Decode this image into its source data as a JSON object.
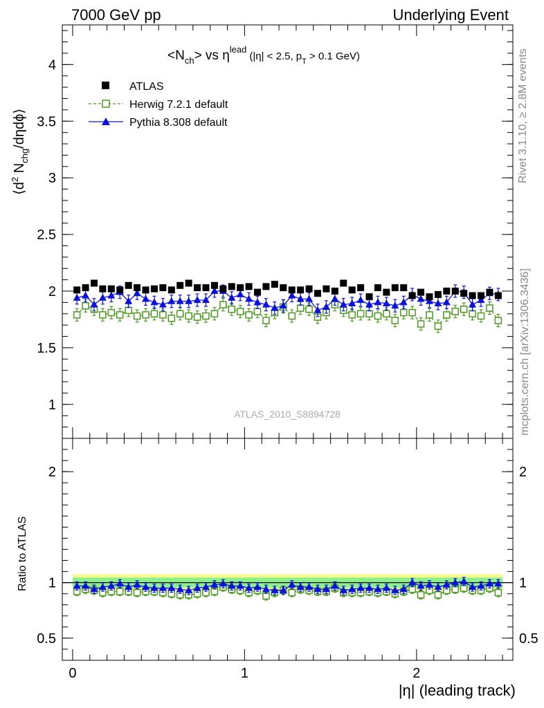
{
  "header": {
    "left": "7000 GeV pp",
    "right": "Underlying Event"
  },
  "side": {
    "rivet": "Rivet 3.1.10, ≥ 2.8M events",
    "mcplots": "mcplots.cern.ch [arXiv:1306.3436]"
  },
  "watermark": "ATLAS_2010_S8894728",
  "colors": {
    "atlas": "#000000",
    "herwig": "#4c9a1f",
    "pythia": "#0a10e0",
    "band_inner": "#8cf08c",
    "band_outer": "#fafa8c"
  },
  "chart_data": [
    {
      "type": "scatter",
      "title_parts": {
        "main": "<N",
        "sub1": "ch",
        "mid": "> vs η",
        "sup": "lead",
        "cond": "(|η| < 2.5, p",
        "sub2": "T",
        "cond_end": " > 0.1 GeV)"
      },
      "ylabel_parts": {
        "pre": "⟨d",
        "sup": "2",
        "mid": " N",
        "sub": "chg",
        "post": "/dηdϕ⟩"
      },
      "xlabel": "|η| (leading track)",
      "ylim": [
        0.7,
        4.35
      ],
      "xlim": [
        -0.06,
        2.56
      ],
      "y_ticks": [
        "1",
        "1.5",
        "2",
        "2.5",
        "3",
        "3.5",
        "4"
      ],
      "legend_position": "top-left",
      "legend": [
        "ATLAS",
        "Herwig 7.2.1 default",
        "Pythia 8.308 default"
      ],
      "x": [
        0.025,
        0.075,
        0.125,
        0.175,
        0.225,
        0.275,
        0.325,
        0.375,
        0.425,
        0.475,
        0.525,
        0.575,
        0.625,
        0.675,
        0.725,
        0.775,
        0.825,
        0.875,
        0.925,
        0.975,
        1.025,
        1.075,
        1.125,
        1.175,
        1.225,
        1.275,
        1.325,
        1.375,
        1.425,
        1.475,
        1.525,
        1.575,
        1.625,
        1.675,
        1.725,
        1.775,
        1.825,
        1.875,
        1.925,
        1.975,
        2.025,
        2.075,
        2.125,
        2.175,
        2.225,
        2.275,
        2.325,
        2.375,
        2.425,
        2.475
      ],
      "series": [
        {
          "name": "ATLAS",
          "values": [
            2.01,
            2.03,
            2.07,
            2.02,
            2.02,
            2.01,
            2.05,
            2.03,
            2.01,
            2.02,
            2.03,
            2.01,
            2.05,
            2.07,
            2.03,
            2.03,
            2.05,
            2.02,
            2.04,
            2.03,
            2.04,
            1.99,
            2.04,
            2.06,
            2.03,
            2.01,
            2.01,
            2.02,
            1.98,
            2.02,
            2.0,
            2.07,
            2.01,
            2.03,
            1.95,
            2.03,
            1.99,
            2.03,
            2.03,
            1.96,
            1.99,
            1.95,
            1.97,
            2.0,
            2.0,
            1.98,
            1.96,
            1.96,
            1.99,
            1.96
          ]
        },
        {
          "name": "Herwig 7.2.1 default",
          "values": [
            1.79,
            1.87,
            1.84,
            1.79,
            1.81,
            1.79,
            1.83,
            1.78,
            1.79,
            1.8,
            1.79,
            1.76,
            1.8,
            1.78,
            1.77,
            1.78,
            1.8,
            1.88,
            1.84,
            1.82,
            1.79,
            1.82,
            1.74,
            1.81,
            1.86,
            1.78,
            1.85,
            1.84,
            1.77,
            1.81,
            1.88,
            1.83,
            1.79,
            1.8,
            1.8,
            1.78,
            1.8,
            1.74,
            1.81,
            1.81,
            1.71,
            1.79,
            1.69,
            1.79,
            1.82,
            1.84,
            1.8,
            1.78,
            1.85,
            1.74
          ]
        },
        {
          "name": "Pythia 8.308 default",
          "values": [
            1.94,
            1.96,
            1.88,
            1.94,
            1.96,
            1.99,
            1.91,
            1.98,
            1.93,
            1.9,
            1.88,
            1.91,
            1.91,
            1.91,
            1.92,
            1.92,
            2.0,
            2.0,
            1.94,
            1.97,
            1.93,
            1.9,
            1.88,
            1.85,
            1.87,
            1.96,
            1.93,
            1.93,
            1.83,
            1.86,
            1.93,
            1.88,
            1.89,
            1.92,
            1.88,
            1.9,
            1.89,
            1.87,
            1.9,
            1.97,
            1.93,
            1.91,
            1.89,
            1.9,
            2.0,
            1.99,
            1.88,
            1.92,
            1.98,
            1.97
          ]
        }
      ]
    },
    {
      "type": "scatter",
      "ylabel": "Ratio to ATLAS",
      "xlabel": "|η| (leading track)",
      "ylim": [
        0.3,
        2.3
      ],
      "y_ticks": [
        "0.5",
        "1",
        "2"
      ],
      "x_ticks": [
        "0",
        "1",
        "2"
      ],
      "band_inner_halfwidth": 0.045,
      "band_outer_halfwidth": 0.075,
      "series": [
        {
          "name": "Herwig 7.2.1 default",
          "values": [
            0.92,
            0.94,
            0.93,
            0.91,
            0.92,
            0.92,
            0.92,
            0.91,
            0.92,
            0.92,
            0.91,
            0.9,
            0.89,
            0.89,
            0.9,
            0.91,
            0.92,
            0.96,
            0.94,
            0.93,
            0.91,
            0.93,
            0.88,
            0.91,
            0.93,
            0.91,
            0.94,
            0.93,
            0.92,
            0.92,
            0.95,
            0.91,
            0.91,
            0.91,
            0.92,
            0.91,
            0.92,
            0.9,
            0.92,
            0.94,
            0.89,
            0.93,
            0.89,
            0.93,
            0.94,
            0.95,
            0.93,
            0.93,
            0.95,
            0.91
          ]
        },
        {
          "name": "Pythia 8.308 default",
          "values": [
            0.97,
            0.97,
            0.94,
            0.96,
            0.97,
            0.99,
            0.96,
            0.98,
            0.96,
            0.95,
            0.95,
            0.95,
            0.94,
            0.93,
            0.95,
            0.96,
            0.98,
            0.99,
            0.97,
            0.97,
            0.95,
            0.96,
            0.94,
            0.93,
            0.93,
            0.98,
            0.96,
            0.96,
            0.94,
            0.94,
            0.97,
            0.93,
            0.94,
            0.95,
            0.95,
            0.94,
            0.95,
            0.93,
            0.94,
            1.0,
            0.97,
            0.98,
            0.96,
            0.98,
            1.0,
            1.01,
            0.96,
            0.97,
            0.99,
            0.99
          ]
        }
      ]
    }
  ]
}
